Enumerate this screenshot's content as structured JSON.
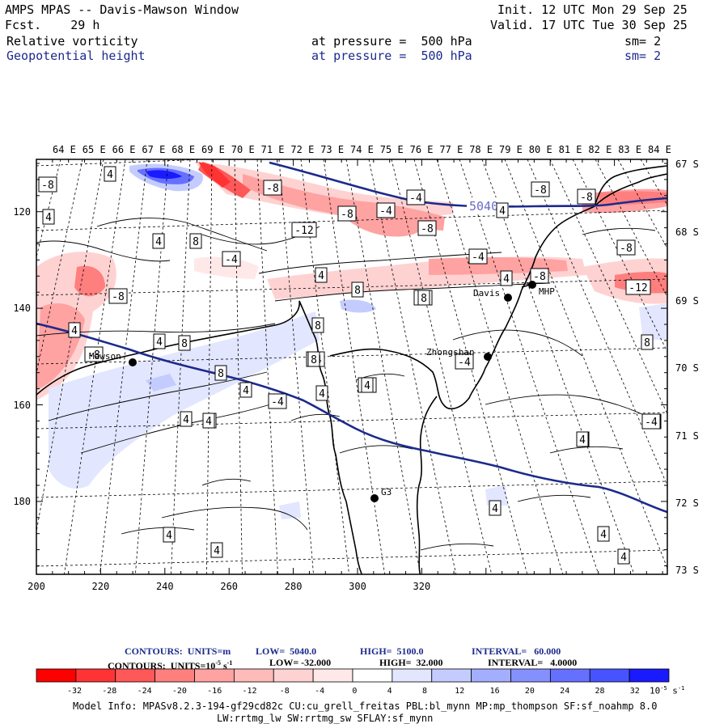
{
  "header": {
    "title": "AMPS MPAS -- Davis-Mawson Window",
    "fcst": "Fcst.    29 h",
    "init": "Init. 12 UTC Mon 29 Sep 25",
    "valid": "Valid. 17 UTC Tue 30 Sep 25",
    "field1": {
      "name": "Relative vorticity",
      "pressure": "at pressure =  500 hPa",
      "sm": "sm= 2"
    },
    "field2": {
      "name": "Geopotential height",
      "pressure": "at pressure =  500 hPa",
      "sm": "sm= 2"
    }
  },
  "map": {
    "lon_labels": [
      "64 E",
      "65 E",
      "66 E",
      "67 E",
      "68 E",
      "69 E",
      "70 E",
      "71 E",
      "72 E",
      "73 E",
      "74 E",
      "75 E",
      "76 E",
      "77 E",
      "78 E",
      "79 E",
      "80 E",
      "81 E",
      "82 E",
      "83 E",
      "84 E"
    ],
    "lat_labels": [
      "67 S",
      "68 S",
      "69 S",
      "70 S",
      "71 S",
      "72 S",
      "73 S"
    ],
    "x_ticks": [
      "200",
      "220",
      "240",
      "260",
      "280",
      "300",
      "320"
    ],
    "y_ticks": [
      "120",
      "140",
      "160",
      "180"
    ],
    "stations": [
      {
        "id": "mawson",
        "label": "Mawson"
      },
      {
        "id": "davis",
        "label": "Davis"
      },
      {
        "id": "mhp",
        "label": "MHP"
      },
      {
        "id": "zhongshan",
        "label": "Zhongshan"
      },
      {
        "id": "g3",
        "label": "G3"
      }
    ],
    "height_contour_label": "5040",
    "contour_labels": [
      "-8",
      "4",
      "4",
      "4",
      "8",
      "-4",
      "-8",
      "-12",
      "-8",
      "-4",
      "-4",
      "-8",
      "-8",
      "-8",
      "4",
      "-8",
      "-12",
      "-8",
      "4",
      "8",
      "-4",
      "4",
      "8",
      "4",
      "-8",
      "-4",
      "8",
      "-4",
      "-4",
      "4",
      "8",
      "4",
      "4",
      "4",
      "4",
      "8",
      "4",
      "-4",
      "4",
      "4",
      "4",
      "4",
      "-4",
      "8",
      "4",
      "4",
      "-8",
      "-4",
      "4",
      "4",
      "4",
      "-4",
      "4",
      "4",
      "8"
    ]
  },
  "colorbar": {
    "contours1": {
      "title": "CONTOURS:  UNITS=m",
      "low": "LOW=  5040.0",
      "high": "HIGH=  5100.0",
      "interval": "INTERVAL=   60.000"
    },
    "contours2": {
      "title": "CONTOURS:  UNITS=10",
      "exp": "-5",
      "s": " s",
      "sexp": "-1",
      "low": "LOW= -32.000",
      "high": "HIGH=  32.000",
      "interval": "INTERVAL=   4.0000"
    },
    "tick_labels": [
      "-32",
      "-28",
      "-24",
      "-20",
      "-16",
      "-12",
      "-8",
      "-4",
      "0",
      "4",
      "8",
      "12",
      "16",
      "20",
      "24",
      "28",
      "32"
    ],
    "units": "10",
    "units_exp": "-5",
    "units_s": " s",
    "units_sexp": "-1",
    "colors": [
      "#ff0000",
      "#ff3333",
      "#ff5858",
      "#ff7f7f",
      "#ffa2a2",
      "#ffbaba",
      "#ffd2d2",
      "#ffe8e8",
      "#ffffff",
      "#ffffff",
      "#e2e6ff",
      "#c4ccff",
      "#a4aeff",
      "#8590ff",
      "#6670ff",
      "#4753ff",
      "#1a1aff"
    ]
  },
  "footer": {
    "line1": "Model Info: MPASv8.2.3-194-gf29cd82c CU:cu_grell_freitas PBL:bl_mynn MP:mp_thompson SF:sf_noahmp 8.0",
    "line2": "LW:rrtmg_lw SW:rrtmg_sw SFLAY:sf_mynn"
  }
}
